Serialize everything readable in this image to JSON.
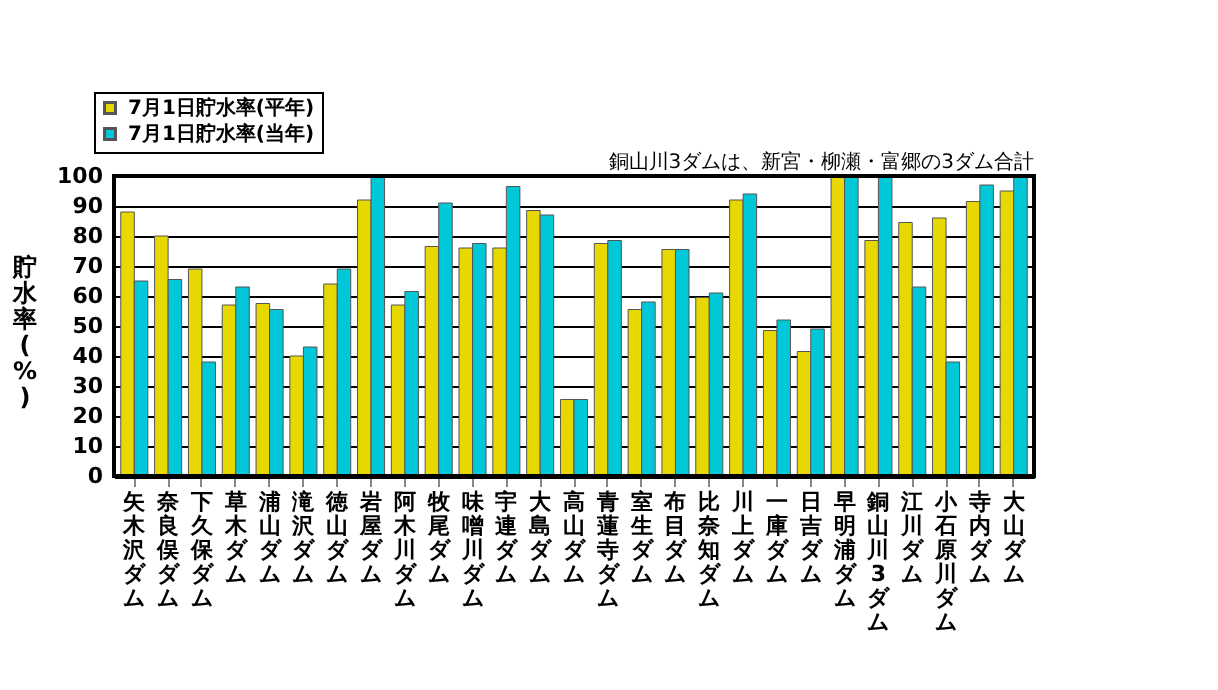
{
  "chart_data": {
    "type": "bar",
    "ylabel": "貯水率(%)",
    "categories": [
      "矢木沢ダム",
      "奈良俣ダム",
      "下久保ダム",
      "草木ダム",
      "浦山ダム",
      "滝沢ダム",
      "徳山ダム",
      "岩屋ダム",
      "阿木川ダム",
      "牧尾ダム",
      "味噌川ダム",
      "宇連ダム",
      "大島ダム",
      "高山ダム",
      "青蓮寺ダム",
      "室生ダム",
      "布目ダム",
      "比奈知ダム",
      "川上ダム",
      "一庫ダム",
      "日吉ダム",
      "早明浦ダム",
      "銅山川3ダム",
      "江川ダム",
      "小石原川ダム",
      "寺内ダム",
      "大山ダム"
    ],
    "series": [
      {
        "name": "7月1日貯水率(平年)",
        "color": "#e6d800",
        "values": [
          88,
          80,
          69,
          57,
          57.5,
          40,
          64,
          92,
          57,
          76.5,
          76,
          76,
          88.5,
          25.5,
          77.5,
          55.5,
          75.5,
          59.5,
          92,
          48.5,
          41.5,
          100,
          78.5,
          84.5,
          86,
          91.5,
          95
        ]
      },
      {
        "name": "7月1日貯水率(当年)",
        "color": "#00c8d8",
        "values": [
          65,
          65.5,
          38,
          63,
          55.5,
          43,
          69,
          100,
          61.5,
          91,
          77.5,
          96.5,
          87,
          25.5,
          78.5,
          58,
          75.5,
          61,
          94,
          52,
          49,
          100,
          100,
          63,
          38,
          97,
          100
        ]
      }
    ],
    "ylim": [
      0,
      100
    ],
    "yticks": [
      0,
      10,
      20,
      30,
      40,
      50,
      60,
      70,
      80,
      90,
      100
    ],
    "grid": "y",
    "legend": "top left",
    "annotations": [
      "銅山川3ダムは、新宮・柳瀬・富郷の3ダム合計"
    ]
  }
}
